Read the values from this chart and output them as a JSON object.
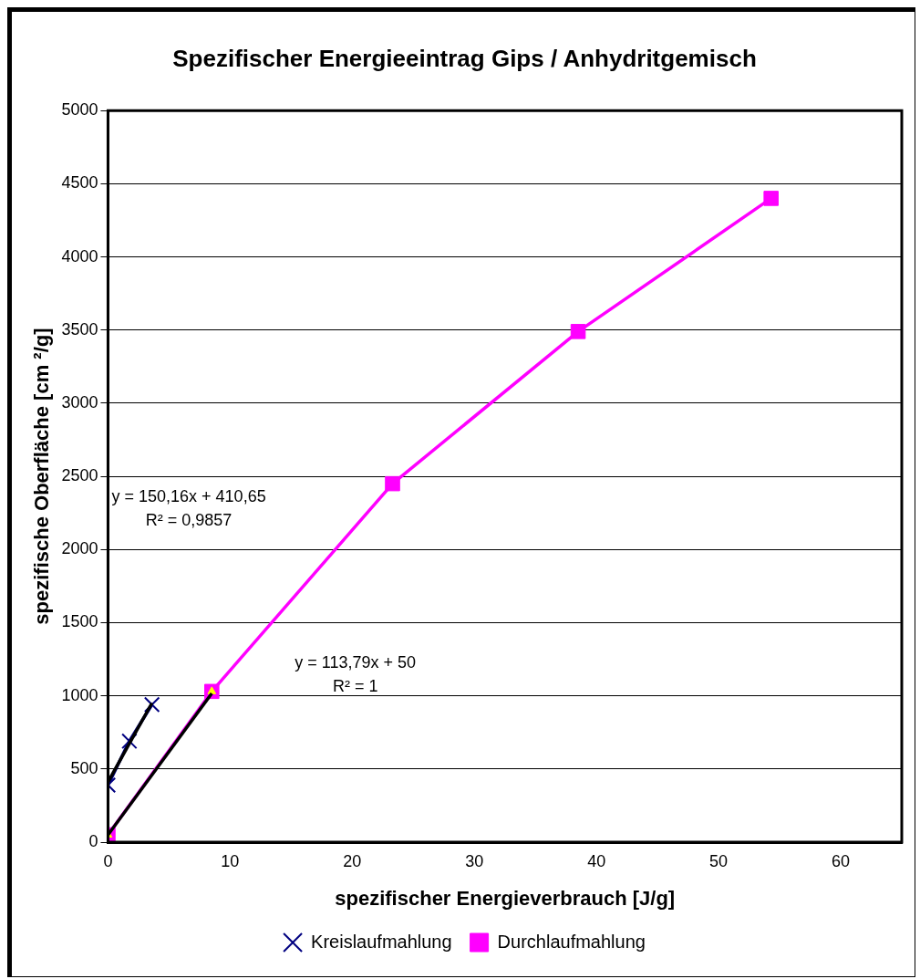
{
  "chart_data": {
    "type": "line",
    "title": "Spezifischer Energieeintrag Gips / Anhydritgemisch",
    "xlabel": "spezifischer Energieverbrauch [J/g]",
    "ylabel": "spezifische Oberfläche [cm ²/g]",
    "xlim": [
      0,
      65
    ],
    "xticks": [
      0,
      10,
      20,
      30,
      40,
      50,
      60
    ],
    "ylim": [
      0,
      5000
    ],
    "yticks": [
      0,
      500,
      1000,
      1500,
      2000,
      2500,
      3000,
      3500,
      4000,
      4500,
      5000
    ],
    "grid": "y",
    "legend": "bottom",
    "line_style": "solid",
    "series": [
      {
        "name": "Kreislaufmahlung",
        "color": "#000080",
        "marker": "cross",
        "x": [
          0,
          1.75,
          3.6
        ],
        "values": [
          390,
          690,
          940
        ]
      },
      {
        "name": "Durchlaufmahlung",
        "color": "#ff00ff",
        "marker": "square",
        "x": [
          0,
          8.5,
          23.3,
          38.5,
          54.3
        ],
        "values": [
          50,
          1030,
          2450,
          3490,
          4400
        ]
      },
      {
        "type": "line",
        "color": "#000000",
        "marker": "none",
        "x": [
          0,
          3.6
        ],
        "values": [
          411,
          951
        ]
      },
      {
        "type": "line",
        "color": "#000000",
        "marker": "none",
        "x": [
          0,
          8.5
        ],
        "values": [
          50,
          1017
        ]
      },
      {
        "type": "scatter",
        "color": "#ffff00",
        "marker": "triangle",
        "x": [
          0,
          8.5
        ],
        "values": [
          50,
          1030
        ]
      }
    ],
    "annotations": [
      "y = 150,16x + 410,65\nR² = 0,9857",
      "y = 113,79x + 50\nR² = 1"
    ]
  }
}
